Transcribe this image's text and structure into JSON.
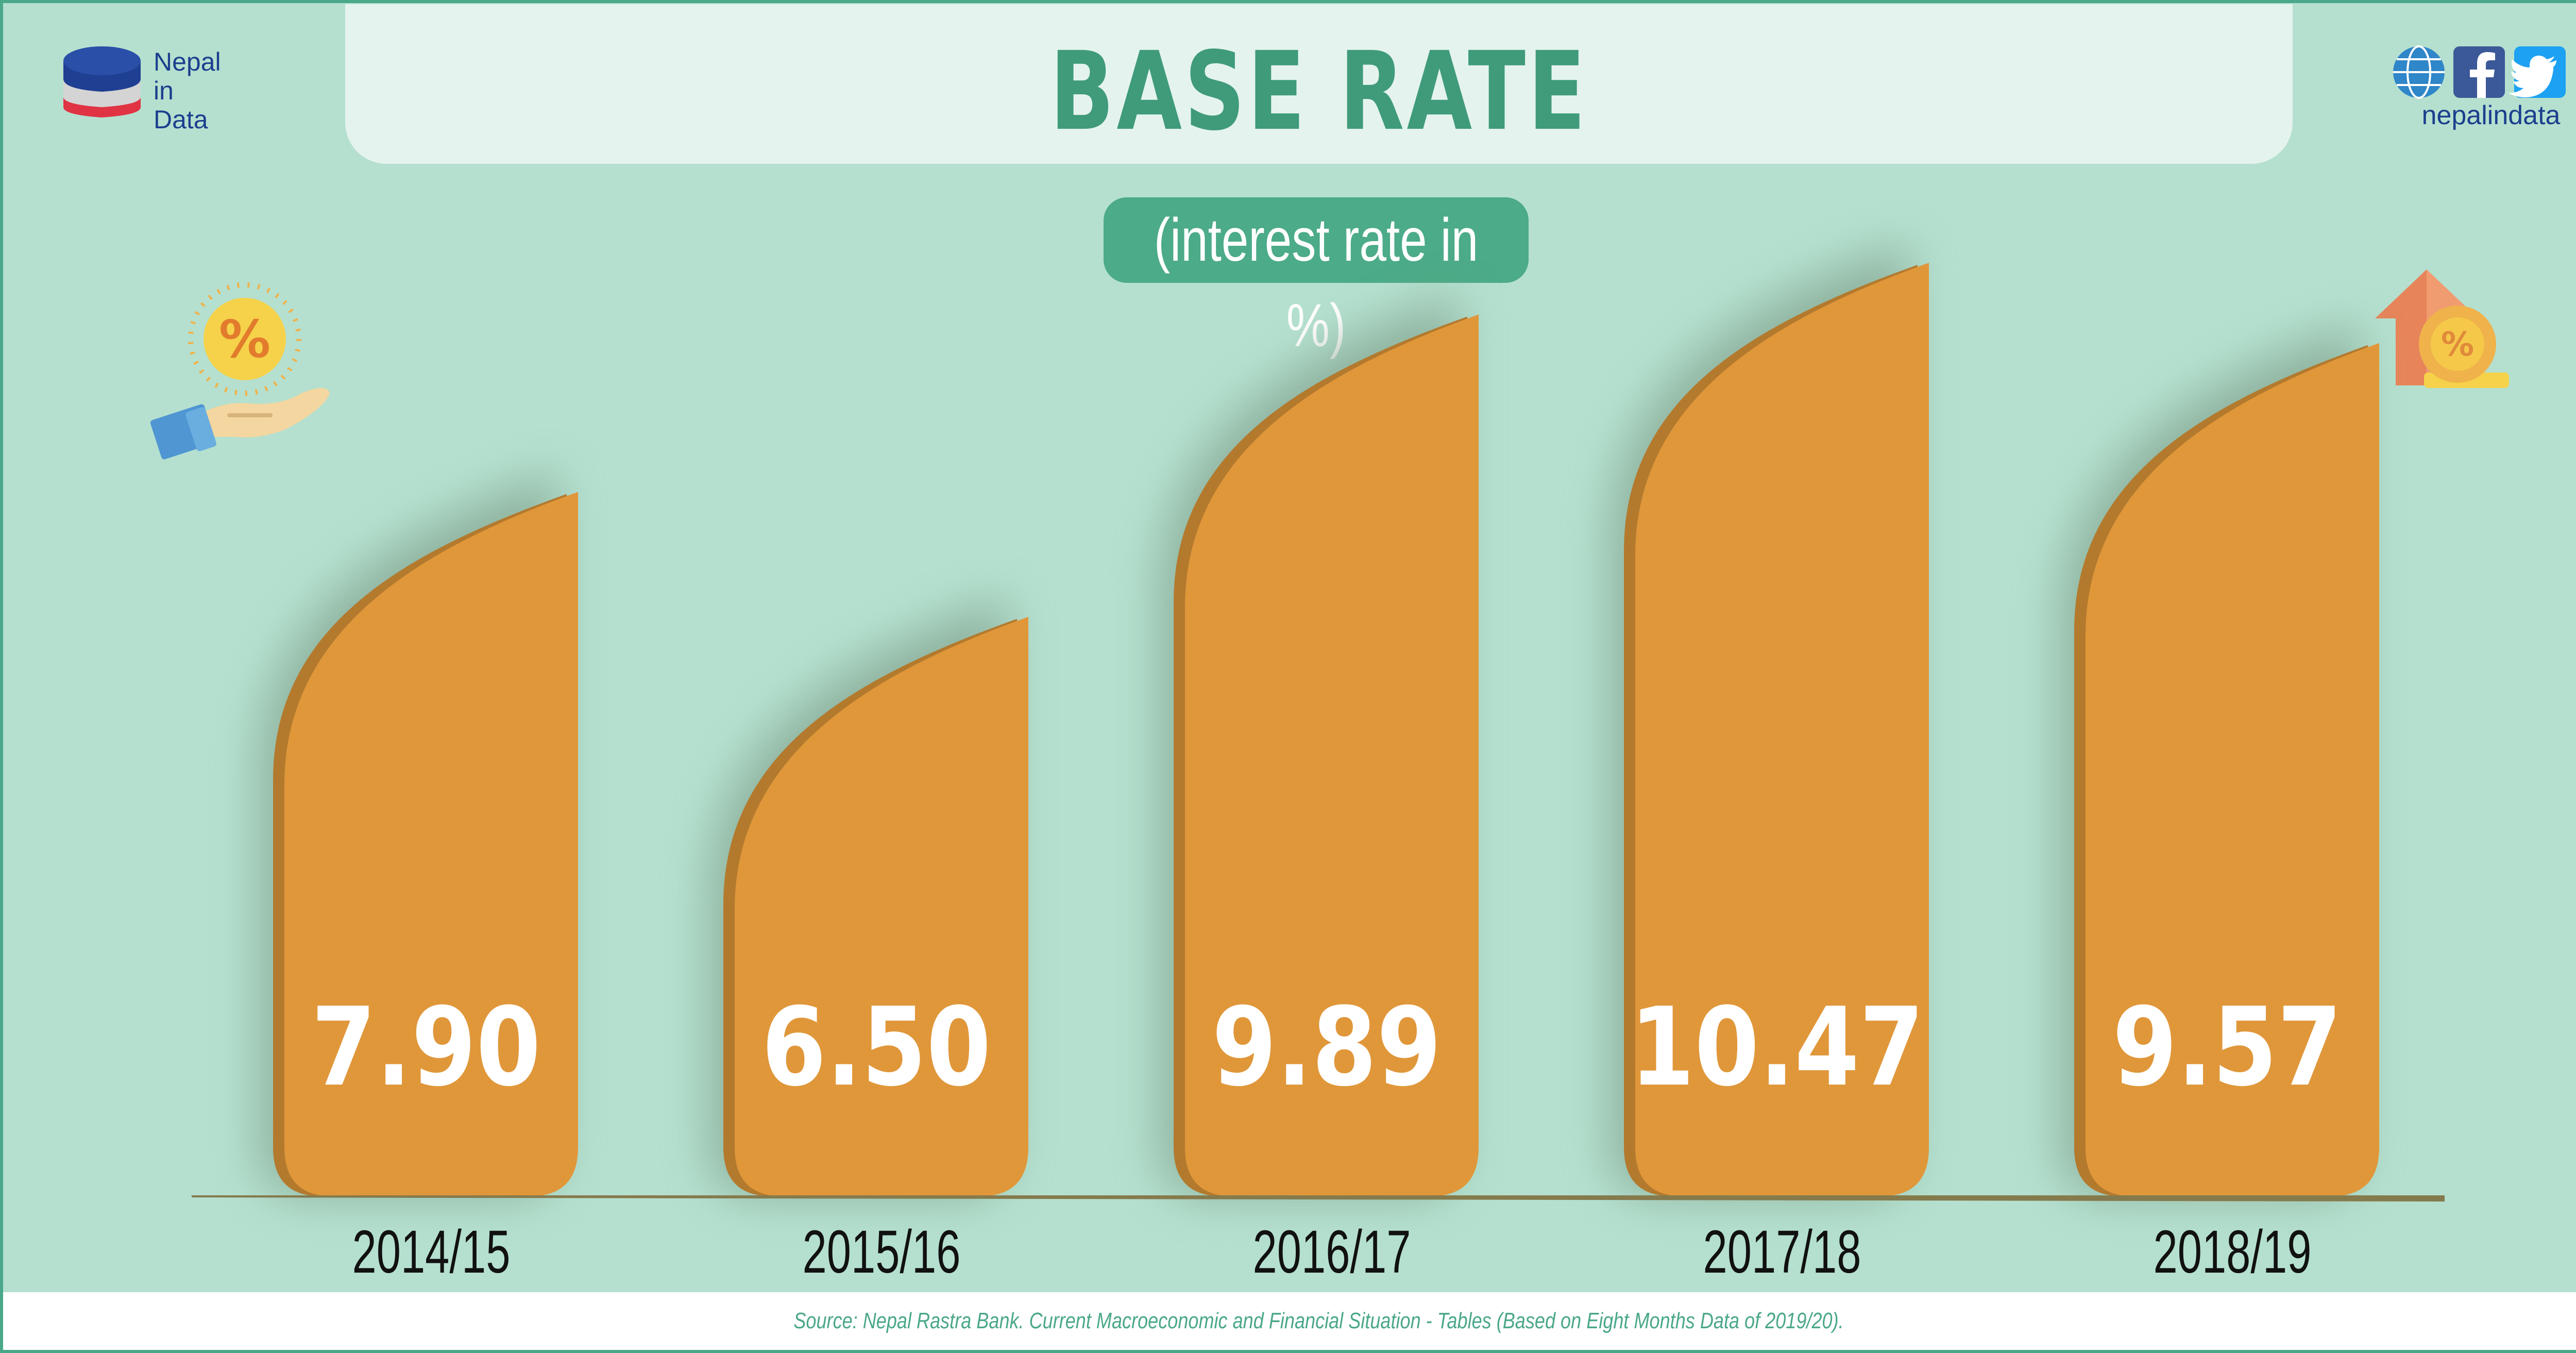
{
  "header": {
    "title": "BASE RATE",
    "subtitle": "(interest rate in %)"
  },
  "brand": {
    "logo_lines": [
      "Nepal",
      "in",
      "Data"
    ],
    "handle": "nepalindata",
    "icons": [
      "globe-www-icon",
      "facebook-icon",
      "twitter-icon"
    ]
  },
  "footer": {
    "source": "Source: Nepal Rastra Bank. Current Macroeconomic and Financial Situation - Tables (Based on Eight Months Data of 2019/20)."
  },
  "colors": {
    "background": "#b5e0cf",
    "bar": "#e0973a",
    "bar_shade": "#b37a2e",
    "accent": "#4cab88",
    "label": "#111111",
    "value": "#ffffff"
  },
  "chart_data": {
    "type": "bar",
    "title": "BASE RATE",
    "subtitle": "(interest rate in %)",
    "categories": [
      "2014/15",
      "2015/16",
      "2016/17",
      "2017/18",
      "2018/19"
    ],
    "values": [
      7.9,
      6.5,
      9.89,
      10.47,
      9.57
    ],
    "value_labels": [
      "7.90",
      "6.50",
      "9.89",
      "10.47",
      "9.57"
    ],
    "xlabel": "",
    "ylabel": "",
    "grid": false,
    "legend": "none"
  }
}
